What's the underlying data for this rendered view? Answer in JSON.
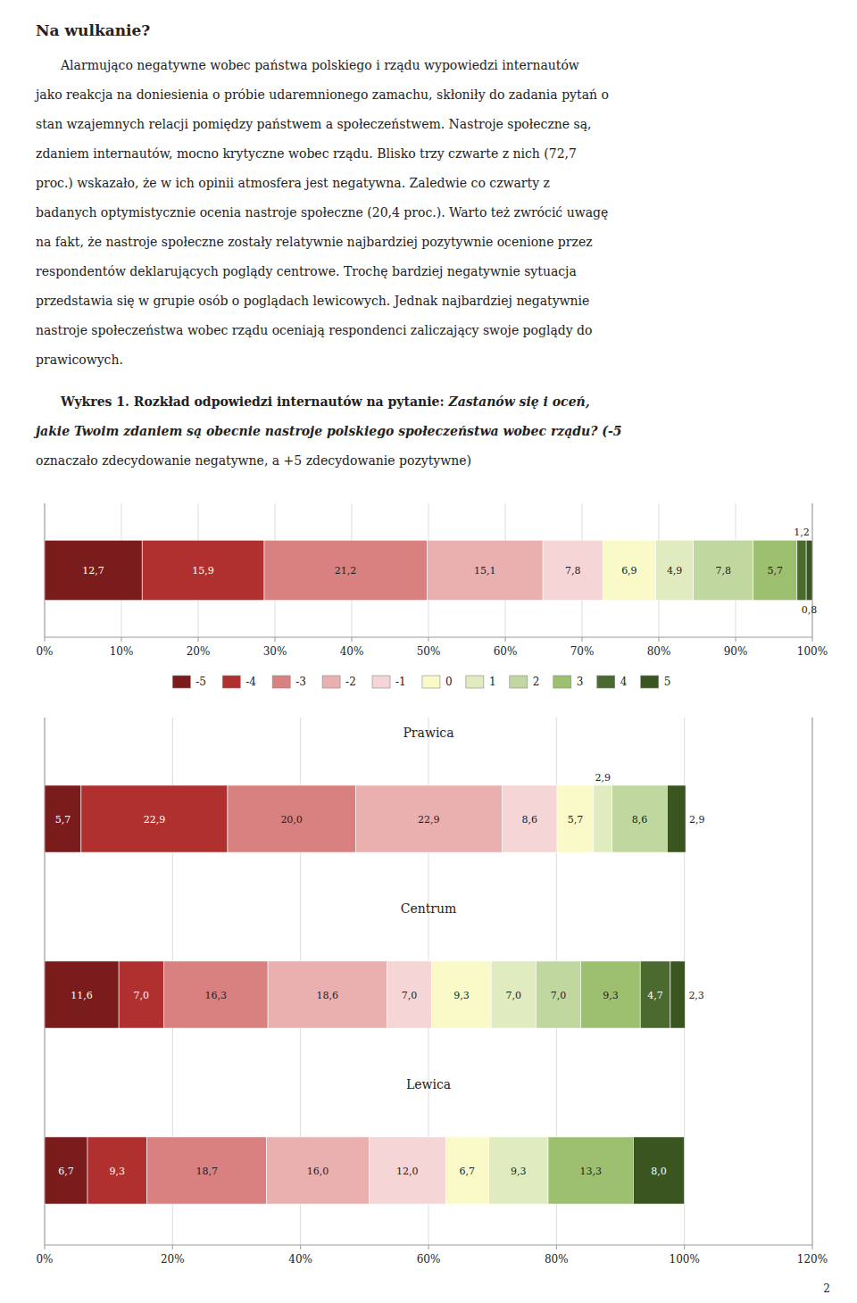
{
  "title": "Na wulkanie?",
  "paragraph": [
    "Alarmująco negatywne wobec państwa polskiego i rządu wypowiedzi internautów",
    "jako reakcja na doniesienia o próbie udaremnionego zamachu, skłoniły do zadania pytań o",
    "stan wzajemnych relacji pomiędzy państwem a społeczeństwem. Nastroje społeczne są,",
    "zdaniem internautów, mocno krytyczne wobec rządu. Blisko trzy czwarte z nich (72,7",
    "proc.) wskazało, że w ich opinii atmosfera jest negatywna. Zaledwie co czwarty z",
    "badanych optymistycznie ocenia nastroje społeczne (20,4 proc.). Warto też zwrócić uwagę",
    "na fakt, że nastroje społeczne zostały relatywnie najbardziej pozytywnie ocenione przez",
    "respondentów deklarujących poglądy centrowe. Trochę bardziej negatywnie sytuacja",
    "przedstawia się w grupie osób o poglądach lewicowych. Jednak najbardziej negatywnie",
    "nastroje społeczeństwa wobec rządu oceniają respondenci zaliczający swoje poglądy do",
    "prawicowych."
  ],
  "caption": [
    [
      "Wykres 1. Rozkład odpowiedzi internautów na pytanie: ",
      "Zastanów się i oceń,"
    ],
    [
      "jakie Twoim zdaniem są obecnie nastroje polskiego społeczeństwa wobec rządu? (-5"
    ],
    [
      "oznaczało zdecydowanie negatywne, a +5 zdecydowanie pozytywne)"
    ]
  ],
  "page_number": "2",
  "chart_data": [
    {
      "type": "bar",
      "orientation": "horizontal",
      "stacked": true,
      "data_labels": true,
      "grid": true,
      "legend": "bottom",
      "tick_labels": "x",
      "categories": [
        null
      ],
      "xlim": [
        0,
        100
      ],
      "xticks": [
        {
          "value": 0,
          "label": "0%"
        },
        {
          "value": 10,
          "label": "10%"
        },
        {
          "value": 20,
          "label": "20%"
        },
        {
          "value": 30,
          "label": "30%"
        },
        {
          "value": 40,
          "label": "40%"
        },
        {
          "value": 50,
          "label": "50%"
        },
        {
          "value": 60,
          "label": "60%"
        },
        {
          "value": 70,
          "label": "70%"
        },
        {
          "value": 80,
          "label": "80%"
        },
        {
          "value": 90,
          "label": "90%"
        },
        {
          "value": 100,
          "label": "100%"
        }
      ],
      "series": [
        {
          "name": "-5",
          "color": "#7B1C1C",
          "values": [
            12.7
          ],
          "value_labels": [
            "12,7"
          ]
        },
        {
          "name": "-4",
          "color": "#B03030",
          "values": [
            15.9
          ],
          "value_labels": [
            "15,9"
          ]
        },
        {
          "name": "-3",
          "color": "#D98080",
          "values": [
            21.2
          ],
          "value_labels": [
            "21,2"
          ]
        },
        {
          "name": "-2",
          "color": "#EAB0B0",
          "values": [
            15.1
          ],
          "value_labels": [
            "15,1"
          ]
        },
        {
          "name": "-1",
          "color": "#F5D5D5",
          "values": [
            7.8
          ],
          "value_labels": [
            "7,8"
          ]
        },
        {
          "name": "0",
          "color": "#FAFAC8",
          "values": [
            6.9
          ],
          "value_labels": [
            "6,9"
          ]
        },
        {
          "name": "1",
          "color": "#E0ECC0",
          "values": [
            4.9
          ],
          "value_labels": [
            "4,9"
          ]
        },
        {
          "name": "2",
          "color": "#C0D8A0",
          "values": [
            7.8
          ],
          "value_labels": [
            "7,8"
          ]
        },
        {
          "name": "3",
          "color": "#9CC070",
          "values": [
            5.7
          ],
          "value_labels": [
            "5,7"
          ]
        },
        {
          "name": "4",
          "color": "#4A6A30",
          "values": [
            1.2
          ],
          "value_labels": [
            "1,2"
          ]
        },
        {
          "name": "5",
          "color": "#3A5520",
          "values": [
            0.8
          ],
          "value_labels": [
            "0,8"
          ]
        }
      ]
    },
    {
      "type": "bar",
      "orientation": "horizontal",
      "stacked": true,
      "data_labels": true,
      "grid": true,
      "tick_labels": "x",
      "categories": [
        "Prawica",
        "Centrum",
        "Lewica"
      ],
      "xlim": [
        0,
        120
      ],
      "xticks": [
        {
          "value": 0,
          "label": "0%"
        },
        {
          "value": 20,
          "label": "20%"
        },
        {
          "value": 40,
          "label": "40%"
        },
        {
          "value": 60,
          "label": "60%"
        },
        {
          "value": 80,
          "label": "80%"
        },
        {
          "value": 100,
          "label": "100%"
        },
        {
          "value": 120,
          "label": "120%"
        }
      ],
      "series": [
        {
          "name": "-5",
          "color": "#7B1C1C",
          "values": [
            5.7,
            11.6,
            6.7
          ],
          "value_labels": [
            "5,7",
            "11,6",
            "6,7"
          ]
        },
        {
          "name": "-4",
          "color": "#B03030",
          "values": [
            22.9,
            7.0,
            9.3
          ],
          "value_labels": [
            "22,9",
            "7,0",
            "9,3"
          ]
        },
        {
          "name": "-3",
          "color": "#D98080",
          "values": [
            20.0,
            16.3,
            18.7
          ],
          "value_labels": [
            "20,0",
            "16,3",
            "18,7"
          ]
        },
        {
          "name": "-2",
          "color": "#EAB0B0",
          "values": [
            22.9,
            18.6,
            16.0
          ],
          "value_labels": [
            "22,9",
            "18,6",
            "16,0"
          ]
        },
        {
          "name": "-1",
          "color": "#F5D5D5",
          "values": [
            8.6,
            7.0,
            12.0
          ],
          "value_labels": [
            "8,6",
            "7,0",
            "12,0"
          ]
        },
        {
          "name": "0",
          "color": "#FAFAC8",
          "values": [
            5.7,
            9.3,
            6.7
          ],
          "value_labels": [
            "5,7",
            "9,3",
            "6,7"
          ]
        },
        {
          "name": "1",
          "color": "#E0ECC0",
          "values": [
            2.9,
            7.0,
            9.3
          ],
          "value_labels": [
            "2,9",
            "7,0",
            "9,3"
          ]
        },
        {
          "name": "2",
          "color": "#C0D8A0",
          "values": [
            8.6,
            7.0,
            null
          ],
          "value_labels": [
            "8,6",
            "7,0",
            null
          ]
        },
        {
          "name": "3",
          "color": "#9CC070",
          "values": [
            null,
            9.3,
            13.3
          ],
          "value_labels": [
            null,
            "9,3",
            "13,3"
          ]
        },
        {
          "name": "4",
          "color": "#4A6A30",
          "values": [
            null,
            4.7,
            null
          ],
          "value_labels": [
            null,
            "4,7",
            null
          ]
        },
        {
          "name": "5",
          "color": "#3A5520",
          "values": [
            2.9,
            2.3,
            8.0
          ],
          "value_labels": [
            "2,9",
            "2,3",
            "8,0"
          ]
        }
      ]
    }
  ]
}
